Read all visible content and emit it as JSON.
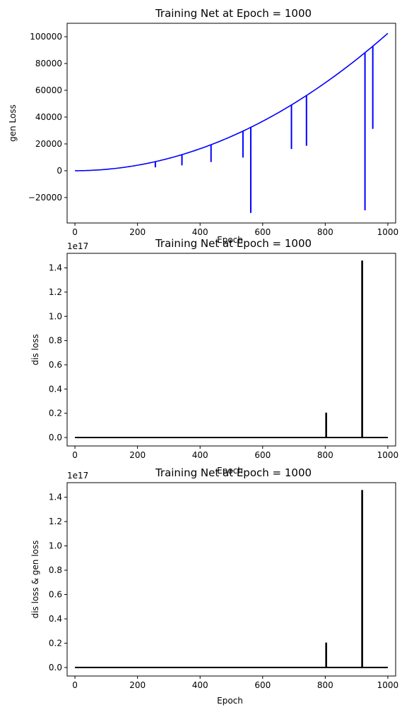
{
  "chart_data": [
    {
      "type": "line",
      "title": "Training Net at Epoch = 1000",
      "xlabel": "Epoch",
      "ylabel": "gen Loss",
      "xlim": [
        -25,
        1025
      ],
      "ylim": [
        -39000,
        110000
      ],
      "x_ticks": [
        0,
        200,
        400,
        600,
        800,
        1000
      ],
      "y_ticks": [
        -20000,
        0,
        20000,
        40000,
        60000,
        80000,
        100000
      ],
      "y_tick_labels": [
        "−20000",
        "0",
        "20000",
        "40000",
        "60000",
        "80000",
        "100000"
      ],
      "color": "#0000ff",
      "trend": {
        "formula": "y = 0.1025 * x^2",
        "x_start": 0,
        "x_end": 1000,
        "y_end": 102500
      },
      "spikes": [
        {
          "x": 257,
          "y_from": 6800,
          "y_to": 2500
        },
        {
          "x": 342,
          "y_from": 12000,
          "y_to": 4000
        },
        {
          "x": 435,
          "y_from": 19400,
          "y_to": 6500
        },
        {
          "x": 537,
          "y_from": 29500,
          "y_to": 9800
        },
        {
          "x": 562,
          "y_from": 32400,
          "y_to": -31500
        },
        {
          "x": 692,
          "y_from": 49100,
          "y_to": 16200
        },
        {
          "x": 740,
          "y_from": 56100,
          "y_to": 18600
        },
        {
          "x": 927,
          "y_from": 88100,
          "y_to": -29500
        },
        {
          "x": 952,
          "y_from": 92900,
          "y_to": 31200
        }
      ]
    },
    {
      "type": "line",
      "title": "Training Net at Epoch = 1000",
      "xlabel": "Epoch",
      "ylabel": "dis loss",
      "offset_label": "1e17",
      "xlim": [
        -25,
        1025
      ],
      "ylim": [
        -0.07,
        1.52
      ],
      "x_ticks": [
        0,
        200,
        400,
        600,
        800,
        1000
      ],
      "y_ticks": [
        0.0,
        0.2,
        0.4,
        0.6,
        0.8,
        1.0,
        1.2,
        1.4
      ],
      "y_tick_labels": [
        "0.0",
        "0.2",
        "0.4",
        "0.6",
        "0.8",
        "1.0",
        "1.2",
        "1.4"
      ],
      "color": "#000000",
      "baseline": 0,
      "spikes": [
        {
          "x": 378,
          "y": 0.004
        },
        {
          "x": 803,
          "y": 0.205
        },
        {
          "x": 918,
          "y": 1.46
        }
      ]
    },
    {
      "type": "line",
      "title": "Training Net at Epoch = 1000",
      "xlabel": "Epoch",
      "ylabel": "dis loss & gen loss",
      "offset_label": "1e17",
      "xlim": [
        -25,
        1025
      ],
      "ylim": [
        -0.07,
        1.52
      ],
      "x_ticks": [
        0,
        200,
        400,
        600,
        800,
        1000
      ],
      "y_ticks": [
        0.0,
        0.2,
        0.4,
        0.6,
        0.8,
        1.0,
        1.2,
        1.4
      ],
      "y_tick_labels": [
        "0.0",
        "0.2",
        "0.4",
        "0.6",
        "0.8",
        "1.0",
        "1.2",
        "1.4"
      ],
      "color": "#000000",
      "baseline": 0,
      "spikes": [
        {
          "x": 378,
          "y": 0.004
        },
        {
          "x": 803,
          "y": 0.205
        },
        {
          "x": 918,
          "y": 1.46
        }
      ]
    }
  ]
}
